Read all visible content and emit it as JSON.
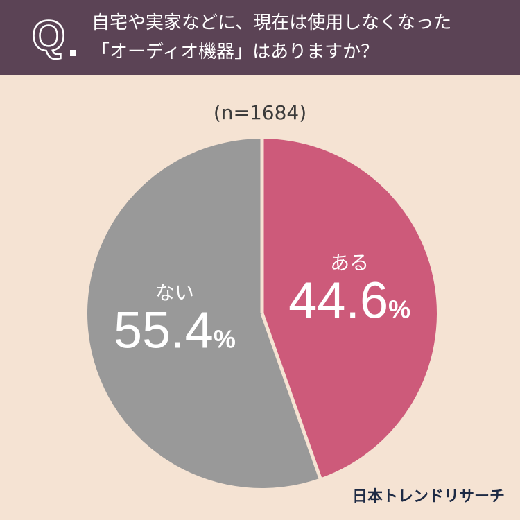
{
  "question": {
    "mark": "Q",
    "line1": "自宅や実家などに、現在は使用しなくなった",
    "line2": "「オーディオ機器」はありますか？"
  },
  "sample_size": "(n=1684)",
  "chart_data": {
    "type": "pie",
    "start_angle_deg": 0,
    "direction": "clockwise",
    "slices": [
      {
        "label": "ある",
        "value": 44.6,
        "display": "44.6",
        "unit": "%",
        "color": "#cd5a7a"
      },
      {
        "label": "ない",
        "value": 55.4,
        "display": "55.4",
        "unit": "%",
        "color": "#999999"
      }
    ],
    "separator_color": "#f5e3d3"
  },
  "brand": "日本トレンドリサーチ"
}
